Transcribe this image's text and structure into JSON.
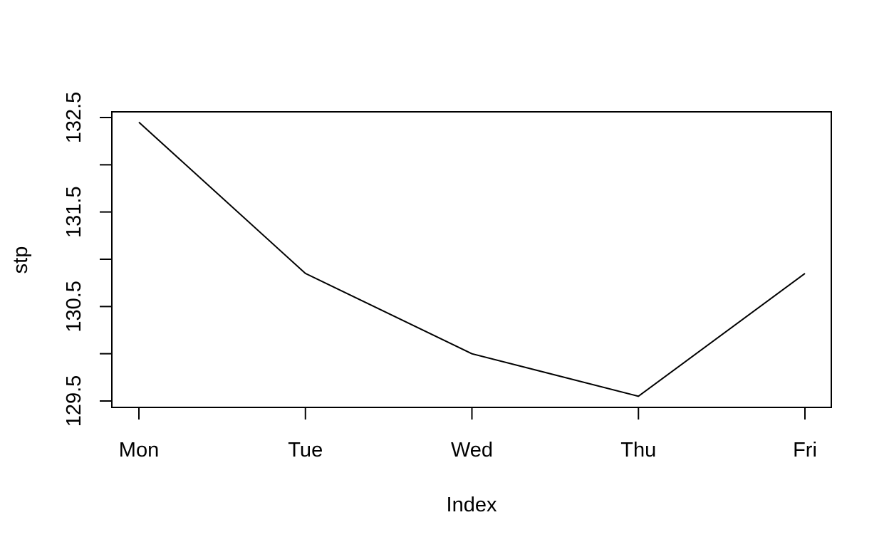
{
  "chart_data": {
    "type": "line",
    "categories": [
      "Mon",
      "Tue",
      "Wed",
      "Thu",
      "Fri"
    ],
    "series": [
      {
        "values": [
          132.45,
          130.85,
          130.0,
          129.55,
          130.85
        ]
      }
    ],
    "xlabel": "Index",
    "ylabel": "stp",
    "ylim": [
      129.4,
      132.55
    ],
    "yticks": [
      129.5,
      130.0,
      130.5,
      131.0,
      131.5,
      132.0,
      132.5
    ],
    "ytick_labels": [
      "129.5",
      "",
      "130.5",
      "",
      "131.5",
      "",
      "132.5"
    ],
    "grid": false,
    "legend": "none",
    "line_color": "#000000"
  }
}
